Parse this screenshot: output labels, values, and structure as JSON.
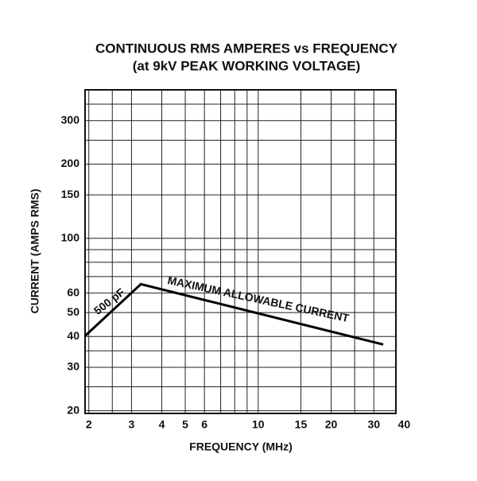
{
  "chart_data": {
    "type": "line",
    "title": "CONTINUOUS RMS AMPERES vs FREQUENCY",
    "subtitle": "(at 9kV PEAK WORKING VOLTAGE)",
    "x_label": "FREQUENCY (MHz)",
    "y_label": "CURRENT (AMPS RMS)",
    "log_x": true,
    "log_y": true,
    "grid": true,
    "xlim": [
      1.93,
      37
    ],
    "ylim": [
      19.5,
      400
    ],
    "xticks": [
      2,
      3,
      4,
      5,
      6,
      10,
      15,
      20,
      30,
      40
    ],
    "yticks": [
      20,
      30,
      40,
      50,
      60,
      100,
      150,
      200,
      300
    ],
    "x_gridlines": [
      2.5,
      7,
      8,
      9,
      25
    ],
    "y_gridlines": [
      25,
      35,
      70,
      80,
      90,
      250,
      350
    ],
    "series": [
      {
        "name": "MAXIMUM ALLOWABLE CURRENT",
        "color": "#000000",
        "x": [
          1.93,
          3.28,
          32.8
        ],
        "values": [
          40.2,
          65.2,
          37.1
        ]
      }
    ],
    "annotations": [
      "500 pF"
    ]
  }
}
